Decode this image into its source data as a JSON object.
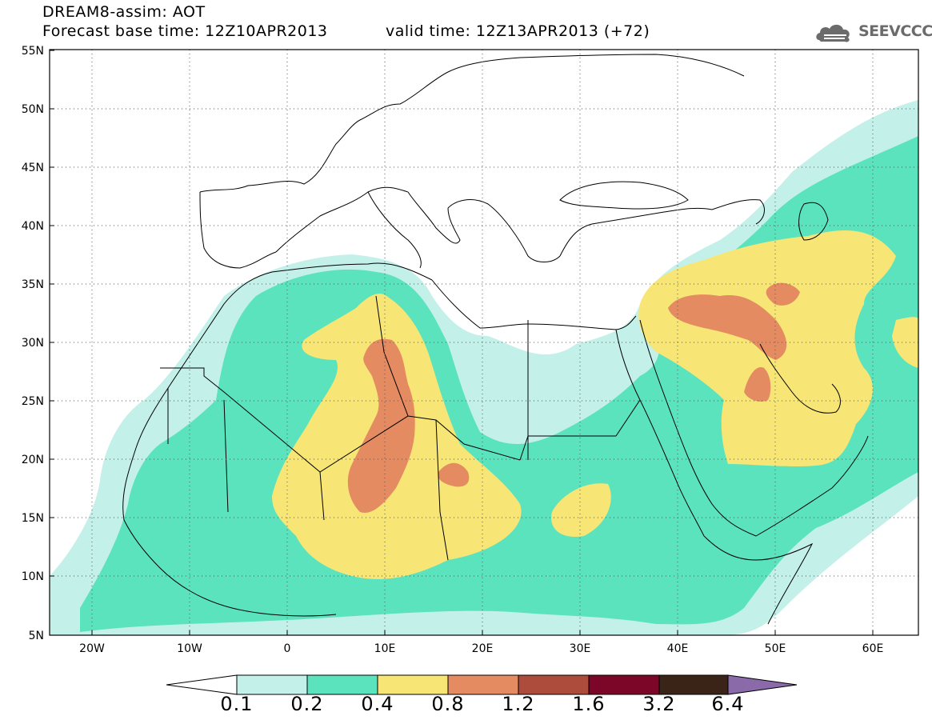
{
  "title": {
    "line1": "DREAM8-assim: AOT",
    "line2": "Forecast base time: 12Z10APR2013",
    "valid": "valid time: 12Z13APR2013 (+72)"
  },
  "logo": {
    "text": "SEEVCCC",
    "icon": "cloud-icon"
  },
  "axes": {
    "lat_ticks": [
      "55N",
      "50N",
      "45N",
      "40N",
      "35N",
      "30N",
      "25N",
      "20N",
      "15N",
      "10N",
      "5N"
    ],
    "lon_ticks": [
      "20W",
      "10W",
      "0",
      "10E",
      "20E",
      "30E",
      "40E",
      "50E",
      "60E"
    ],
    "lat_range": [
      5,
      55
    ],
    "lon_range": [
      -25,
      65
    ]
  },
  "legend": {
    "levels": [
      "0.1",
      "0.2",
      "0.4",
      "0.8",
      "1.2",
      "1.6",
      "3.2",
      "6.4"
    ],
    "colors": [
      "#ffffff",
      "#c4f0ea",
      "#5be3be",
      "#f7e675",
      "#e58b62",
      "#ad4b3c",
      "#7b0628",
      "#3a2418",
      "#8a6aa8"
    ]
  },
  "colors": {
    "aot_0_1": "#c4f0ea",
    "aot_0_2": "#5be3be",
    "aot_0_4": "#f7e675",
    "aot_0_8": "#e58b62"
  }
}
